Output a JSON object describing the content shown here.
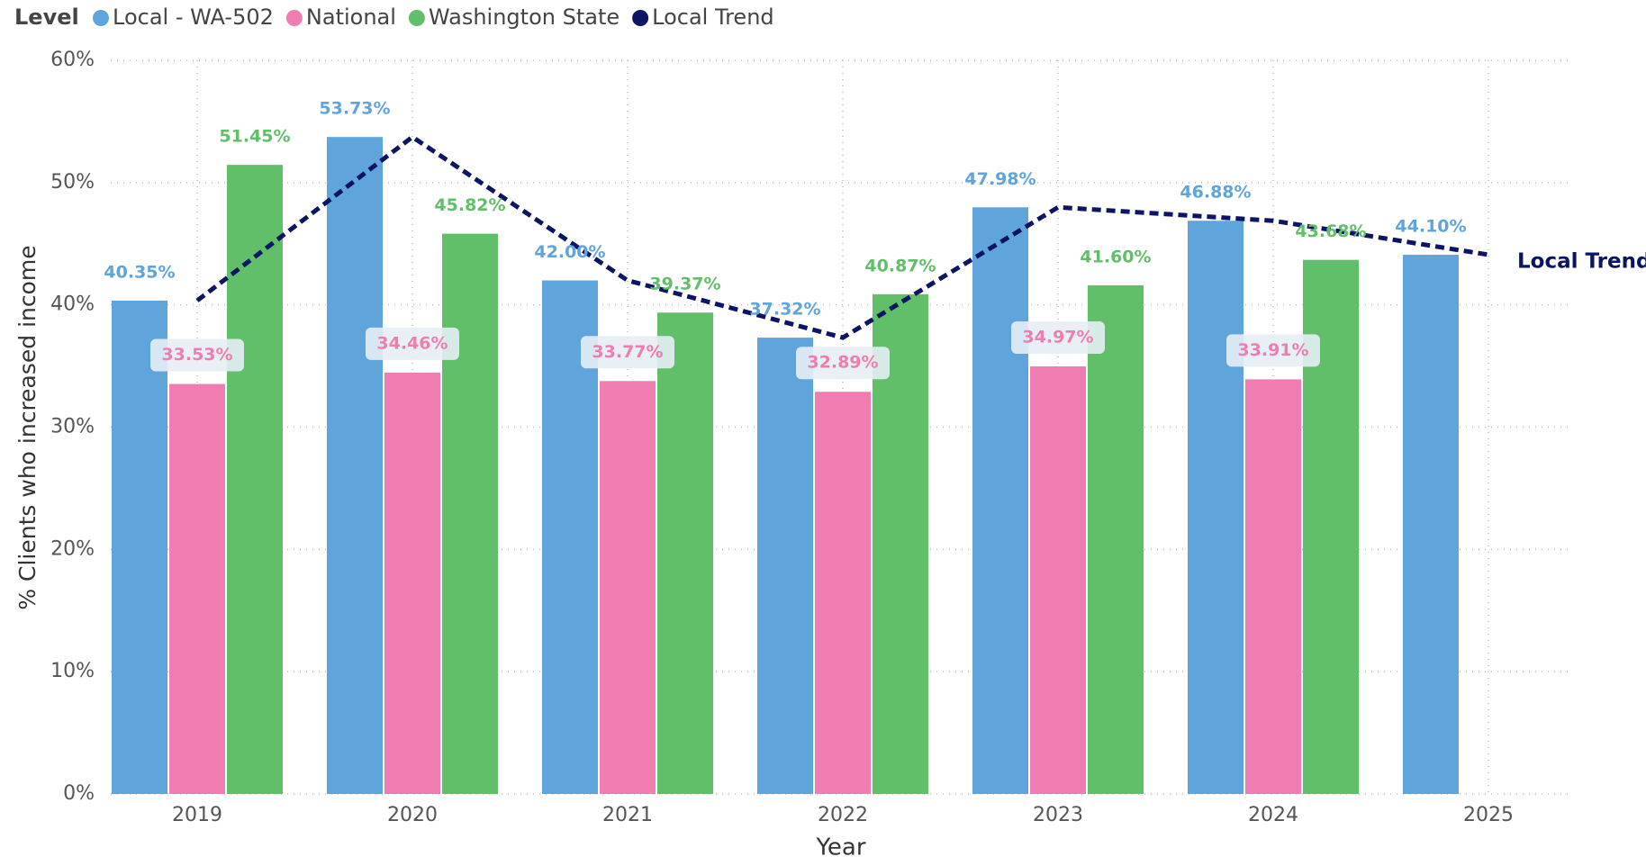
{
  "chart_data": {
    "type": "bar",
    "legend_title": "Level",
    "xlabel": "Year",
    "ylabel": "% Clients who increased income",
    "categories": [
      "2019",
      "2020",
      "2021",
      "2022",
      "2023",
      "2024",
      "2025"
    ],
    "series": [
      {
        "name": "Local - WA-502",
        "color": "#5fa5dc",
        "values": [
          40.35,
          53.73,
          42.0,
          37.32,
          47.98,
          46.88,
          44.1
        ],
        "value_labels": [
          "40.35%",
          "53.73%",
          "42.00%",
          "37.32%",
          "47.98%",
          "46.88%",
          "44.10%"
        ]
      },
      {
        "name": "National",
        "color": "#f07db2",
        "values": [
          33.53,
          34.46,
          33.77,
          32.89,
          34.97,
          33.91,
          null
        ],
        "value_labels": [
          "33.53%",
          "34.46%",
          "33.77%",
          "32.89%",
          "34.97%",
          "33.91%",
          null
        ]
      },
      {
        "name": "Washington State",
        "color": "#60bf68",
        "values": [
          51.45,
          45.82,
          39.37,
          40.87,
          41.6,
          43.68,
          null
        ],
        "value_labels": [
          "51.45%",
          "45.82%",
          "39.37%",
          "40.87%",
          "41.60%",
          "43.68%",
          null
        ]
      },
      {
        "name": "Local Trend",
        "type": "line",
        "color": "#0c1464",
        "values": [
          40.35,
          53.73,
          42.0,
          37.32,
          47.98,
          46.88,
          44.1
        ]
      }
    ],
    "ylim": [
      0,
      60
    ],
    "yticks": [
      {
        "value": 0,
        "label": "0%"
      },
      {
        "value": 10,
        "label": "10%"
      },
      {
        "value": 20,
        "label": "20%"
      },
      {
        "value": 30,
        "label": "30%"
      },
      {
        "value": 40,
        "label": "40%"
      },
      {
        "value": 50,
        "label": "50%"
      },
      {
        "value": 60,
        "label": "60%"
      }
    ],
    "grid": true
  }
}
